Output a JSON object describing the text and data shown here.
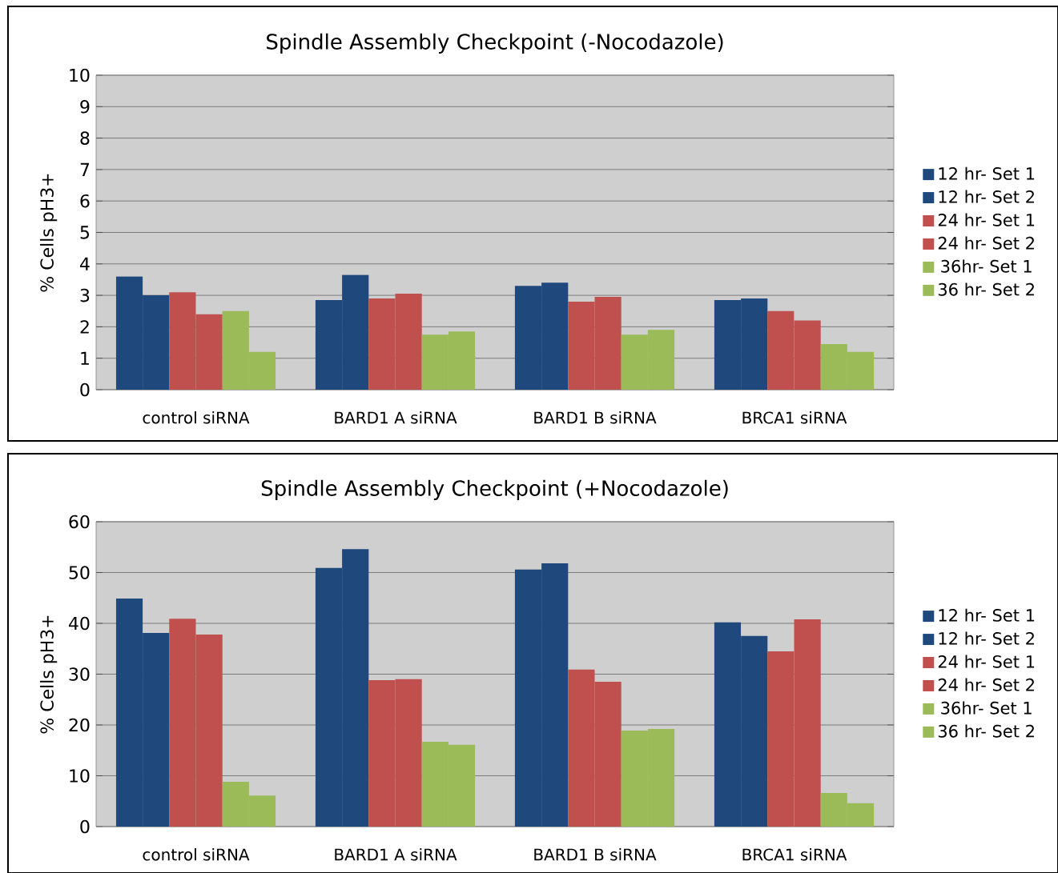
{
  "chart_data": [
    {
      "type": "bar",
      "title": "Spindle Assembly Checkpoint (-Nocodazole)",
      "ylabel": "% Cells pH3+",
      "categories": [
        "control siRNA",
        "BARD1 A siRNA",
        "BARD1 B siRNA",
        "BRCA1 siRNA"
      ],
      "series": [
        {
          "name": "12 hr- Set 1",
          "color": "#1f497d",
          "values": [
            3.6,
            2.85,
            3.3,
            2.85
          ]
        },
        {
          "name": "12 hr- Set 2",
          "color": "#1f497d",
          "values": [
            3.0,
            3.65,
            3.4,
            2.9
          ]
        },
        {
          "name": "24 hr- Set 1",
          "color": "#c0504d",
          "values": [
            3.1,
            2.9,
            2.8,
            2.5
          ]
        },
        {
          "name": "24 hr- Set 2",
          "color": "#c0504d",
          "values": [
            2.4,
            3.05,
            2.95,
            2.2
          ]
        },
        {
          "name": "36hr- Set 1",
          "color": "#9bbb59",
          "values": [
            2.5,
            1.75,
            1.75,
            1.45
          ]
        },
        {
          "name": "36 hr- Set 2",
          "color": "#9bbb59",
          "values": [
            1.2,
            1.85,
            1.9,
            1.2
          ]
        }
      ],
      "ylim": [
        0,
        10
      ],
      "yticks": [
        0,
        1,
        2,
        3,
        4,
        5,
        6,
        7,
        8,
        9,
        10
      ],
      "grid": "y",
      "legend": "right"
    },
    {
      "type": "bar",
      "title": "Spindle Assembly Checkpoint (+Nocodazole)",
      "ylabel": "% Cells pH3+",
      "categories": [
        "control siRNA",
        "BARD1 A siRNA",
        "BARD1 B siRNA",
        "BRCA1 siRNA"
      ],
      "series": [
        {
          "name": "12 hr- Set 1",
          "color": "#1f497d",
          "values": [
            44.9,
            50.9,
            50.6,
            40.2
          ]
        },
        {
          "name": "12 hr- Set 2",
          "color": "#1f497d",
          "values": [
            38.1,
            54.6,
            51.8,
            37.5
          ]
        },
        {
          "name": "24 hr- Set 1",
          "color": "#c0504d",
          "values": [
            40.9,
            28.8,
            30.9,
            34.5
          ]
        },
        {
          "name": "24 hr- Set 2",
          "color": "#c0504d",
          "values": [
            37.8,
            29.0,
            28.5,
            40.8
          ]
        },
        {
          "name": "36hr- Set 1",
          "color": "#9bbb59",
          "values": [
            8.8,
            16.7,
            18.9,
            6.6
          ]
        },
        {
          "name": "36 hr- Set 2",
          "color": "#9bbb59",
          "values": [
            6.1,
            16.1,
            19.2,
            4.6
          ]
        }
      ],
      "ylim": [
        0,
        60
      ],
      "yticks": [
        0,
        10,
        20,
        30,
        40,
        50,
        60
      ],
      "grid": "y",
      "legend": "right"
    }
  ]
}
